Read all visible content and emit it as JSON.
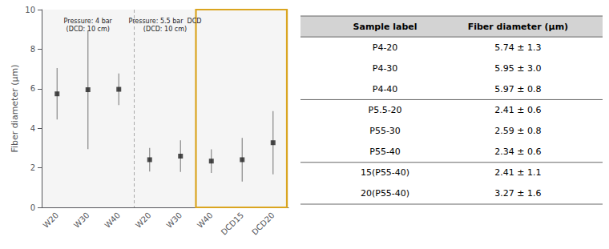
{
  "chart_data": {
    "type": "scatter",
    "ylabel": "Fiber diameter (μm)",
    "categories": [
      "W20",
      "W30",
      "W40",
      "W20",
      "W30",
      "W40",
      "DCD15",
      "DCD20"
    ],
    "values": [
      5.74,
      5.95,
      5.97,
      2.41,
      2.59,
      2.34,
      2.41,
      3.27
    ],
    "errors": [
      1.3,
      3.0,
      0.8,
      0.6,
      0.8,
      0.6,
      1.1,
      1.6
    ],
    "color": "#222222",
    "marker": "square",
    "ylim": [
      0,
      10
    ],
    "yticks": [
      0,
      2,
      4,
      6,
      8,
      10
    ],
    "grid": false,
    "annotations": [
      "Pressure: 4 bar\n(DCD: 10 cm)",
      "Pressure: 5.5 bar  DCD\n(DCD: 10 cm)"
    ],
    "table": {
      "headers": [
        "Sample label",
        "Fiber diameter (μm)"
      ],
      "rows": [
        [
          "P4-20",
          "5.74 ± 1.3"
        ],
        [
          "P4-30",
          "5.95 ± 3.0"
        ],
        [
          "P4-40",
          "5.97 ± 0.8"
        ],
        [
          "P5.5-20",
          "2.41 ± 0.6"
        ],
        [
          "P55-30",
          "2.59 ± 0.8"
        ],
        [
          "P55-40",
          "2.34 ± 0.6"
        ],
        [
          "15(P55-40)",
          "2.41 ± 1.1"
        ],
        [
          "20(P55-40)",
          "3.27 ± 1.6"
        ]
      ]
    }
  }
}
